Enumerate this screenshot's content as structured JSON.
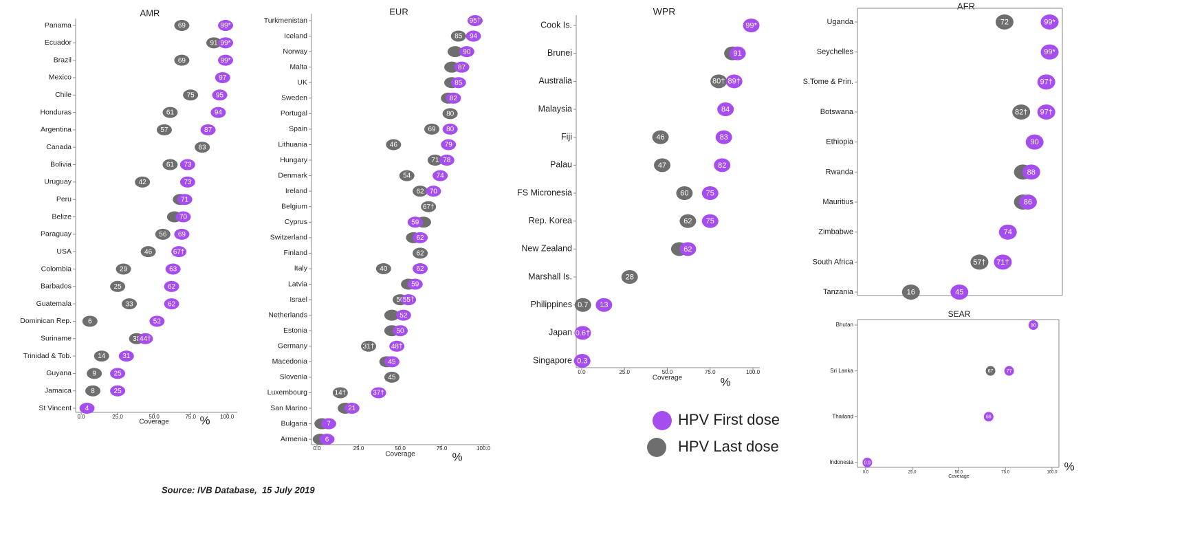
{
  "chart_data": [
    {
      "type": "dot",
      "title": "AMR",
      "categories": [
        "Panama",
        "Ecuador",
        "Brazil",
        "Mexico",
        "Chile",
        "Honduras",
        "Argentina",
        "Canada",
        "Bolivia",
        "Uruguay",
        "Peru",
        "Belize",
        "Paraguay",
        "USA",
        "Colombia",
        "Barbados",
        "Guatemala",
        "Dominican Rep.",
        "Suriname",
        "Trinidad & Tob.",
        "Guyana",
        "Jamaica",
        "St Vincent"
      ],
      "series": [
        {
          "name": "HPV First dose",
          "color": "#a64df0",
          "values": [
            99,
            99,
            99,
            97,
            95,
            94,
            87,
            null,
            73,
            73,
            71,
            70,
            69,
            67,
            63,
            62,
            62,
            52,
            44,
            31,
            25,
            25,
            4
          ],
          "value_labels": [
            "99*",
            "99*",
            "99*",
            "97",
            "95",
            "94",
            "87",
            null,
            "73",
            "73",
            "71",
            "70",
            "69",
            "67†",
            "63",
            "62",
            "62",
            "52",
            "44†",
            "31",
            "25",
            "25",
            "4"
          ]
        },
        {
          "name": "HPV Last dose",
          "color": "#6e6e6e",
          "values": [
            69,
            91,
            69,
            null,
            75,
            61,
            57,
            83,
            61,
            42,
            68,
            64,
            56,
            46,
            29,
            25,
            33,
            6,
            38,
            14,
            9,
            8,
            null
          ],
          "value_labels": [
            "69",
            "91",
            "69",
            null,
            "75",
            "61",
            "57",
            "83",
            "61",
            "42",
            null,
            null,
            "56",
            "46",
            "29",
            "25",
            "33",
            "6",
            "38",
            "14",
            "9",
            "8",
            null
          ]
        }
      ],
      "xlim": [
        -3.8,
        107
      ],
      "xticks": [
        {
          "value": 0,
          "label": "0.0"
        },
        {
          "value": 25,
          "label": "25.0"
        },
        {
          "value": 50,
          "label": "50.0"
        },
        {
          "value": 75,
          "label": "75.0"
        },
        {
          "value": 100,
          "label": "100.0"
        }
      ],
      "xlabel": "Coverage",
      "x_unit": "%"
    },
    {
      "type": "dot",
      "title": "EUR",
      "categories": [
        "Turkmenistan",
        "Iceland",
        "Norway",
        "Malta",
        "UK",
        "Sweden",
        "Portugal",
        "Spain",
        "Lithuania",
        "Hungary",
        "Denmark",
        "Ireland",
        "Belgium",
        "Cyprus",
        "Switzerland",
        "Finland",
        "Italy",
        "Latvia",
        "Israel",
        "Netherlands",
        "Estonia",
        "Germany",
        "Macedonia",
        "Slovenia",
        "Luxembourg",
        "San Marino",
        "Bulgaria",
        "Armenia"
      ],
      "series": [
        {
          "name": "HPV First dose",
          "color": "#a64df0",
          "values": [
            95,
            94,
            90,
            87,
            85,
            82,
            null,
            80,
            79,
            78,
            74,
            70,
            null,
            59,
            62,
            null,
            62,
            59,
            55,
            52,
            50,
            48,
            45,
            null,
            37,
            21,
            7,
            6
          ],
          "value_labels": [
            "95†",
            "94",
            "90",
            "87",
            "85",
            "82",
            null,
            "80",
            "79",
            "78",
            "74",
            "70",
            null,
            "59",
            "62",
            null,
            "62",
            "59",
            "55†",
            "52",
            "50",
            "48†",
            "45",
            null,
            "37†",
            "21",
            "7",
            "6"
          ]
        },
        {
          "name": "HPV Last dose",
          "color": "#6e6e6e",
          "values": [
            null,
            85,
            83,
            81,
            81,
            79,
            80,
            69,
            46,
            71,
            54,
            62,
            67,
            64,
            58,
            62,
            40,
            55,
            50,
            45,
            45,
            31,
            42,
            45,
            14,
            17,
            3,
            2
          ],
          "value_labels": [
            null,
            "85",
            null,
            null,
            null,
            null,
            "80",
            "69",
            "46",
            "71",
            "54",
            "62",
            "67†",
            null,
            null,
            "62",
            "40",
            null,
            "50",
            null,
            null,
            "31†",
            null,
            "45",
            "14†",
            null,
            null,
            null
          ]
        }
      ],
      "xlim": [
        -3.3,
        103.7
      ],
      "xticks": [
        {
          "value": 0,
          "label": "0.0"
        },
        {
          "value": 25,
          "label": "25.0"
        },
        {
          "value": 50,
          "label": "50.0"
        },
        {
          "value": 75,
          "label": "75.0"
        },
        {
          "value": 100,
          "label": "100.0"
        }
      ],
      "xlabel": "Coverage",
      "x_unit": "%"
    },
    {
      "type": "dot",
      "title": "WPR",
      "categories": [
        "Cook Is.",
        "Brunei",
        "Australia",
        "Malaysia",
        "Fiji",
        "Palau",
        "FS Micronesia",
        "Rep. Korea",
        "New Zealand",
        "Marshall Is.",
        "Philippines",
        "Japan",
        "Singapore"
      ],
      "series": [
        {
          "name": "HPV First dose",
          "color": "#a64df0",
          "values": [
            99,
            91,
            89,
            84,
            83,
            82,
            75,
            75,
            62,
            null,
            13,
            0.6,
            0.3
          ],
          "value_labels": [
            "99*",
            "91",
            "89†",
            "84",
            "83",
            "82",
            "75",
            "75",
            "62",
            null,
            "13",
            "0.6†",
            "0.3"
          ]
        },
        {
          "name": "HPV Last dose",
          "color": "#6e6e6e",
          "values": [
            null,
            88,
            80,
            null,
            46,
            47,
            60,
            62,
            57,
            28,
            0.7,
            null,
            null
          ],
          "value_labels": [
            null,
            null,
            "80†",
            null,
            "46",
            "47",
            "60",
            "62",
            null,
            "28",
            "0.7",
            null,
            null
          ]
        }
      ],
      "xlim": [
        -3.2,
        104
      ],
      "xticks": [
        {
          "value": 0,
          "label": "0.0"
        },
        {
          "value": 25,
          "label": "25.0"
        },
        {
          "value": 50,
          "label": "50.0"
        },
        {
          "value": 75,
          "label": "75.0"
        },
        {
          "value": 100,
          "label": "100.0"
        }
      ],
      "xlabel": "Coverage",
      "x_unit": "%"
    },
    {
      "type": "dot",
      "title": "AFR",
      "categories": [
        "Uganda",
        "Seychelles",
        "S.Tome & Prin.",
        "Botswana",
        "Ethiopia",
        "Rwanda",
        "Mauritius",
        "Zimbabwe",
        "South Africa",
        "Tanzania"
      ],
      "series": [
        {
          "name": "HPV First dose",
          "color": "#a64df0",
          "values": [
            99,
            99,
            97,
            97,
            90,
            88,
            86,
            74,
            71,
            45
          ],
          "value_labels": [
            "99*",
            "99*",
            "97†",
            "97†",
            "90",
            "88",
            "86",
            "74",
            "71†",
            "45"
          ]
        },
        {
          "name": "HPV Last dose",
          "color": "#6e6e6e",
          "values": [
            72,
            null,
            null,
            82,
            null,
            83,
            83,
            null,
            57,
            16
          ],
          "value_labels": [
            "72",
            null,
            null,
            "82†",
            null,
            null,
            null,
            null,
            "57†",
            "16"
          ]
        }
      ],
      "xlim": [
        -16,
        106.6
      ]
    },
    {
      "type": "dot",
      "title": "SEAR",
      "categories": [
        "Bhutan",
        "Sri Lanka",
        "Thailand",
        "Indonesia"
      ],
      "series": [
        {
          "name": "HPV First dose",
          "color": "#a64df0",
          "values": [
            90,
            77,
            66,
            0.9
          ],
          "value_labels": [
            "90",
            "77",
            "66",
            "0.9"
          ]
        },
        {
          "name": "HPV Last dose",
          "color": "#6e6e6e",
          "values": [
            null,
            67,
            null,
            null
          ],
          "value_labels": [
            null,
            "67",
            null,
            null
          ]
        }
      ],
      "xlim": [
        -4.4,
        103.7
      ],
      "xticks": [
        {
          "value": 0,
          "label": "0.0"
        },
        {
          "value": 25,
          "label": "25.0"
        },
        {
          "value": 50,
          "label": "50.0"
        },
        {
          "value": 75,
          "label": "75.0"
        },
        {
          "value": 100,
          "label": "100.0"
        }
      ],
      "xlabel": "Coverage",
      "x_unit": "%"
    }
  ],
  "source": "Source: IVB Database,  15 July 2019"
}
